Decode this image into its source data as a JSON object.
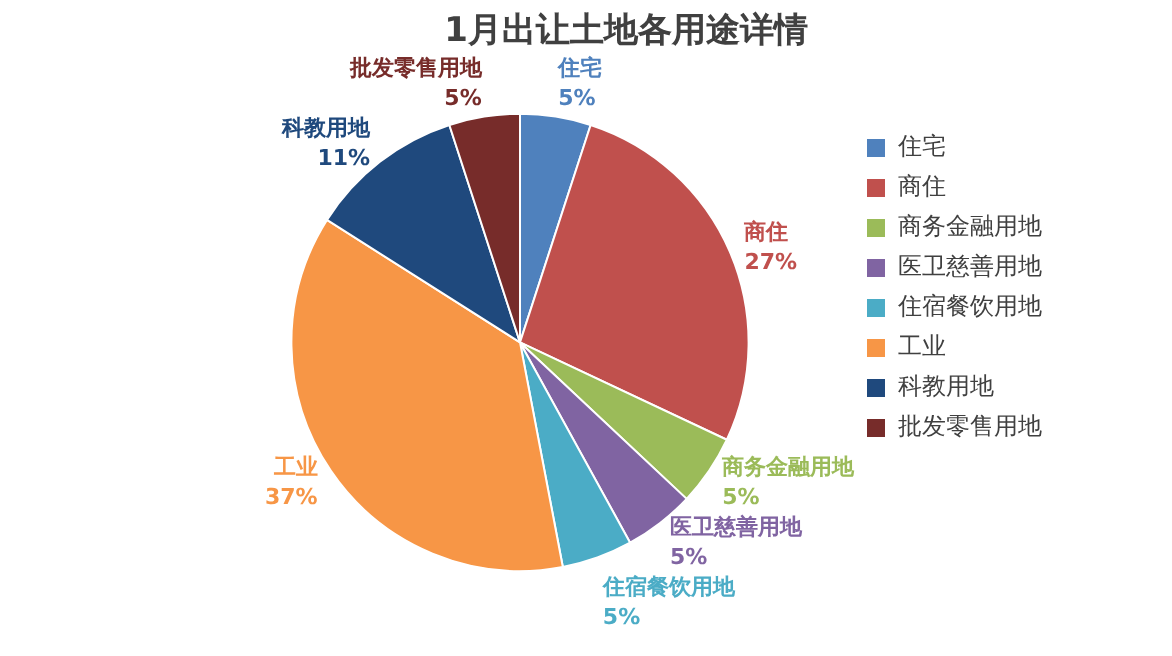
{
  "chart_data": {
    "type": "pie",
    "title": "1月出让土地各用途详情",
    "categories": [
      "住宅",
      "商住",
      "商务金融用地",
      "医卫慈善用地",
      "住宿餐饮用地",
      "工业",
      "科教用地",
      "批发零售用地"
    ],
    "values": [
      5,
      27,
      5,
      5,
      5,
      37,
      11,
      5
    ],
    "value_labels": [
      "5%",
      "27%",
      "5%",
      "5%",
      "5%",
      "37%",
      "11%",
      "5%"
    ],
    "colors": [
      "#4f81bd",
      "#c0504d",
      "#9bbb59",
      "#8064a2",
      "#4bacc6",
      "#f79646",
      "#1f497d",
      "#772c2a"
    ],
    "legend": "right"
  }
}
